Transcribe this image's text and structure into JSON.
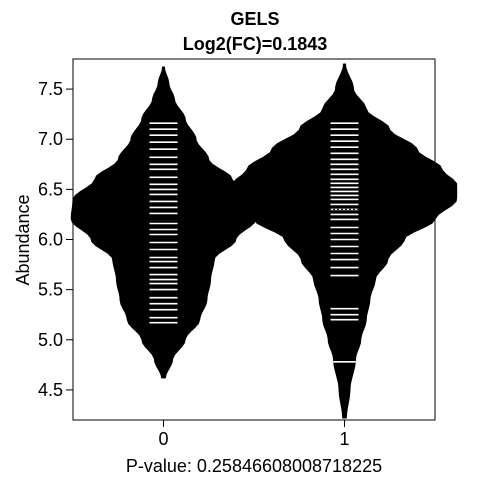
{
  "chart_data": {
    "type": "beanplot",
    "title": "GELS",
    "subtitle": "Log2(FC)=0.1843",
    "xlabel": "P-value: 0.25846608008718225",
    "ylabel": "Abundance",
    "categories": [
      "0",
      "1"
    ],
    "ylim": [
      4.2,
      7.8
    ],
    "yticks": [
      4.5,
      5.0,
      5.5,
      6.0,
      6.5,
      7.0,
      7.5
    ],
    "ytick_labels": [
      "4.5",
      "5.0",
      "5.5",
      "6.0",
      "6.5",
      "7.0",
      "7.5"
    ],
    "overall_mean": 6.3,
    "grid": false,
    "series": [
      {
        "category": "0",
        "mean": 6.2,
        "density_range": [
          4.62,
          7.72
        ],
        "density": [
          [
            4.62,
            0.01
          ],
          [
            4.8,
            0.05
          ],
          [
            5.0,
            0.12
          ],
          [
            5.2,
            0.2
          ],
          [
            5.4,
            0.24
          ],
          [
            5.6,
            0.26
          ],
          [
            5.8,
            0.28
          ],
          [
            6.0,
            0.4
          ],
          [
            6.2,
            0.51
          ],
          [
            6.4,
            0.5
          ],
          [
            6.6,
            0.38
          ],
          [
            6.8,
            0.25
          ],
          [
            7.0,
            0.18
          ],
          [
            7.2,
            0.12
          ],
          [
            7.4,
            0.06
          ],
          [
            7.55,
            0.03
          ],
          [
            7.72,
            0.005
          ]
        ],
        "observations": [
          5.17,
          5.22,
          5.3,
          5.36,
          5.42,
          5.5,
          5.56,
          5.6,
          5.65,
          5.72,
          5.78,
          5.82,
          5.9,
          5.97,
          6.05,
          6.1,
          6.16,
          6.2,
          6.26,
          6.32,
          6.38,
          6.45,
          6.5,
          6.55,
          6.62,
          6.7,
          6.75,
          6.82,
          6.9,
          6.97,
          7.04,
          7.1,
          7.16
        ]
      },
      {
        "category": "1",
        "mean": 6.38,
        "density_range": [
          4.22,
          7.75
        ],
        "density": [
          [
            4.22,
            0.01
          ],
          [
            4.5,
            0.03
          ],
          [
            4.8,
            0.06
          ],
          [
            5.0,
            0.09
          ],
          [
            5.2,
            0.12
          ],
          [
            5.4,
            0.14
          ],
          [
            5.6,
            0.17
          ],
          [
            5.8,
            0.24
          ],
          [
            6.0,
            0.33
          ],
          [
            6.2,
            0.5
          ],
          [
            6.4,
            0.62
          ],
          [
            6.55,
            0.62
          ],
          [
            6.7,
            0.54
          ],
          [
            6.9,
            0.4
          ],
          [
            7.1,
            0.25
          ],
          [
            7.3,
            0.12
          ],
          [
            7.5,
            0.05
          ],
          [
            7.75,
            0.005
          ]
        ],
        "observations": [
          4.78,
          5.2,
          5.25,
          5.31,
          5.64,
          5.72,
          5.8,
          5.86,
          5.93,
          6.0,
          6.06,
          6.12,
          6.2,
          6.25,
          6.3,
          6.35,
          6.4,
          6.44,
          6.48,
          6.52,
          6.56,
          6.6,
          6.65,
          6.7,
          6.75,
          6.8,
          6.86,
          6.92,
          6.98,
          7.04,
          7.1,
          7.16
        ]
      }
    ]
  }
}
